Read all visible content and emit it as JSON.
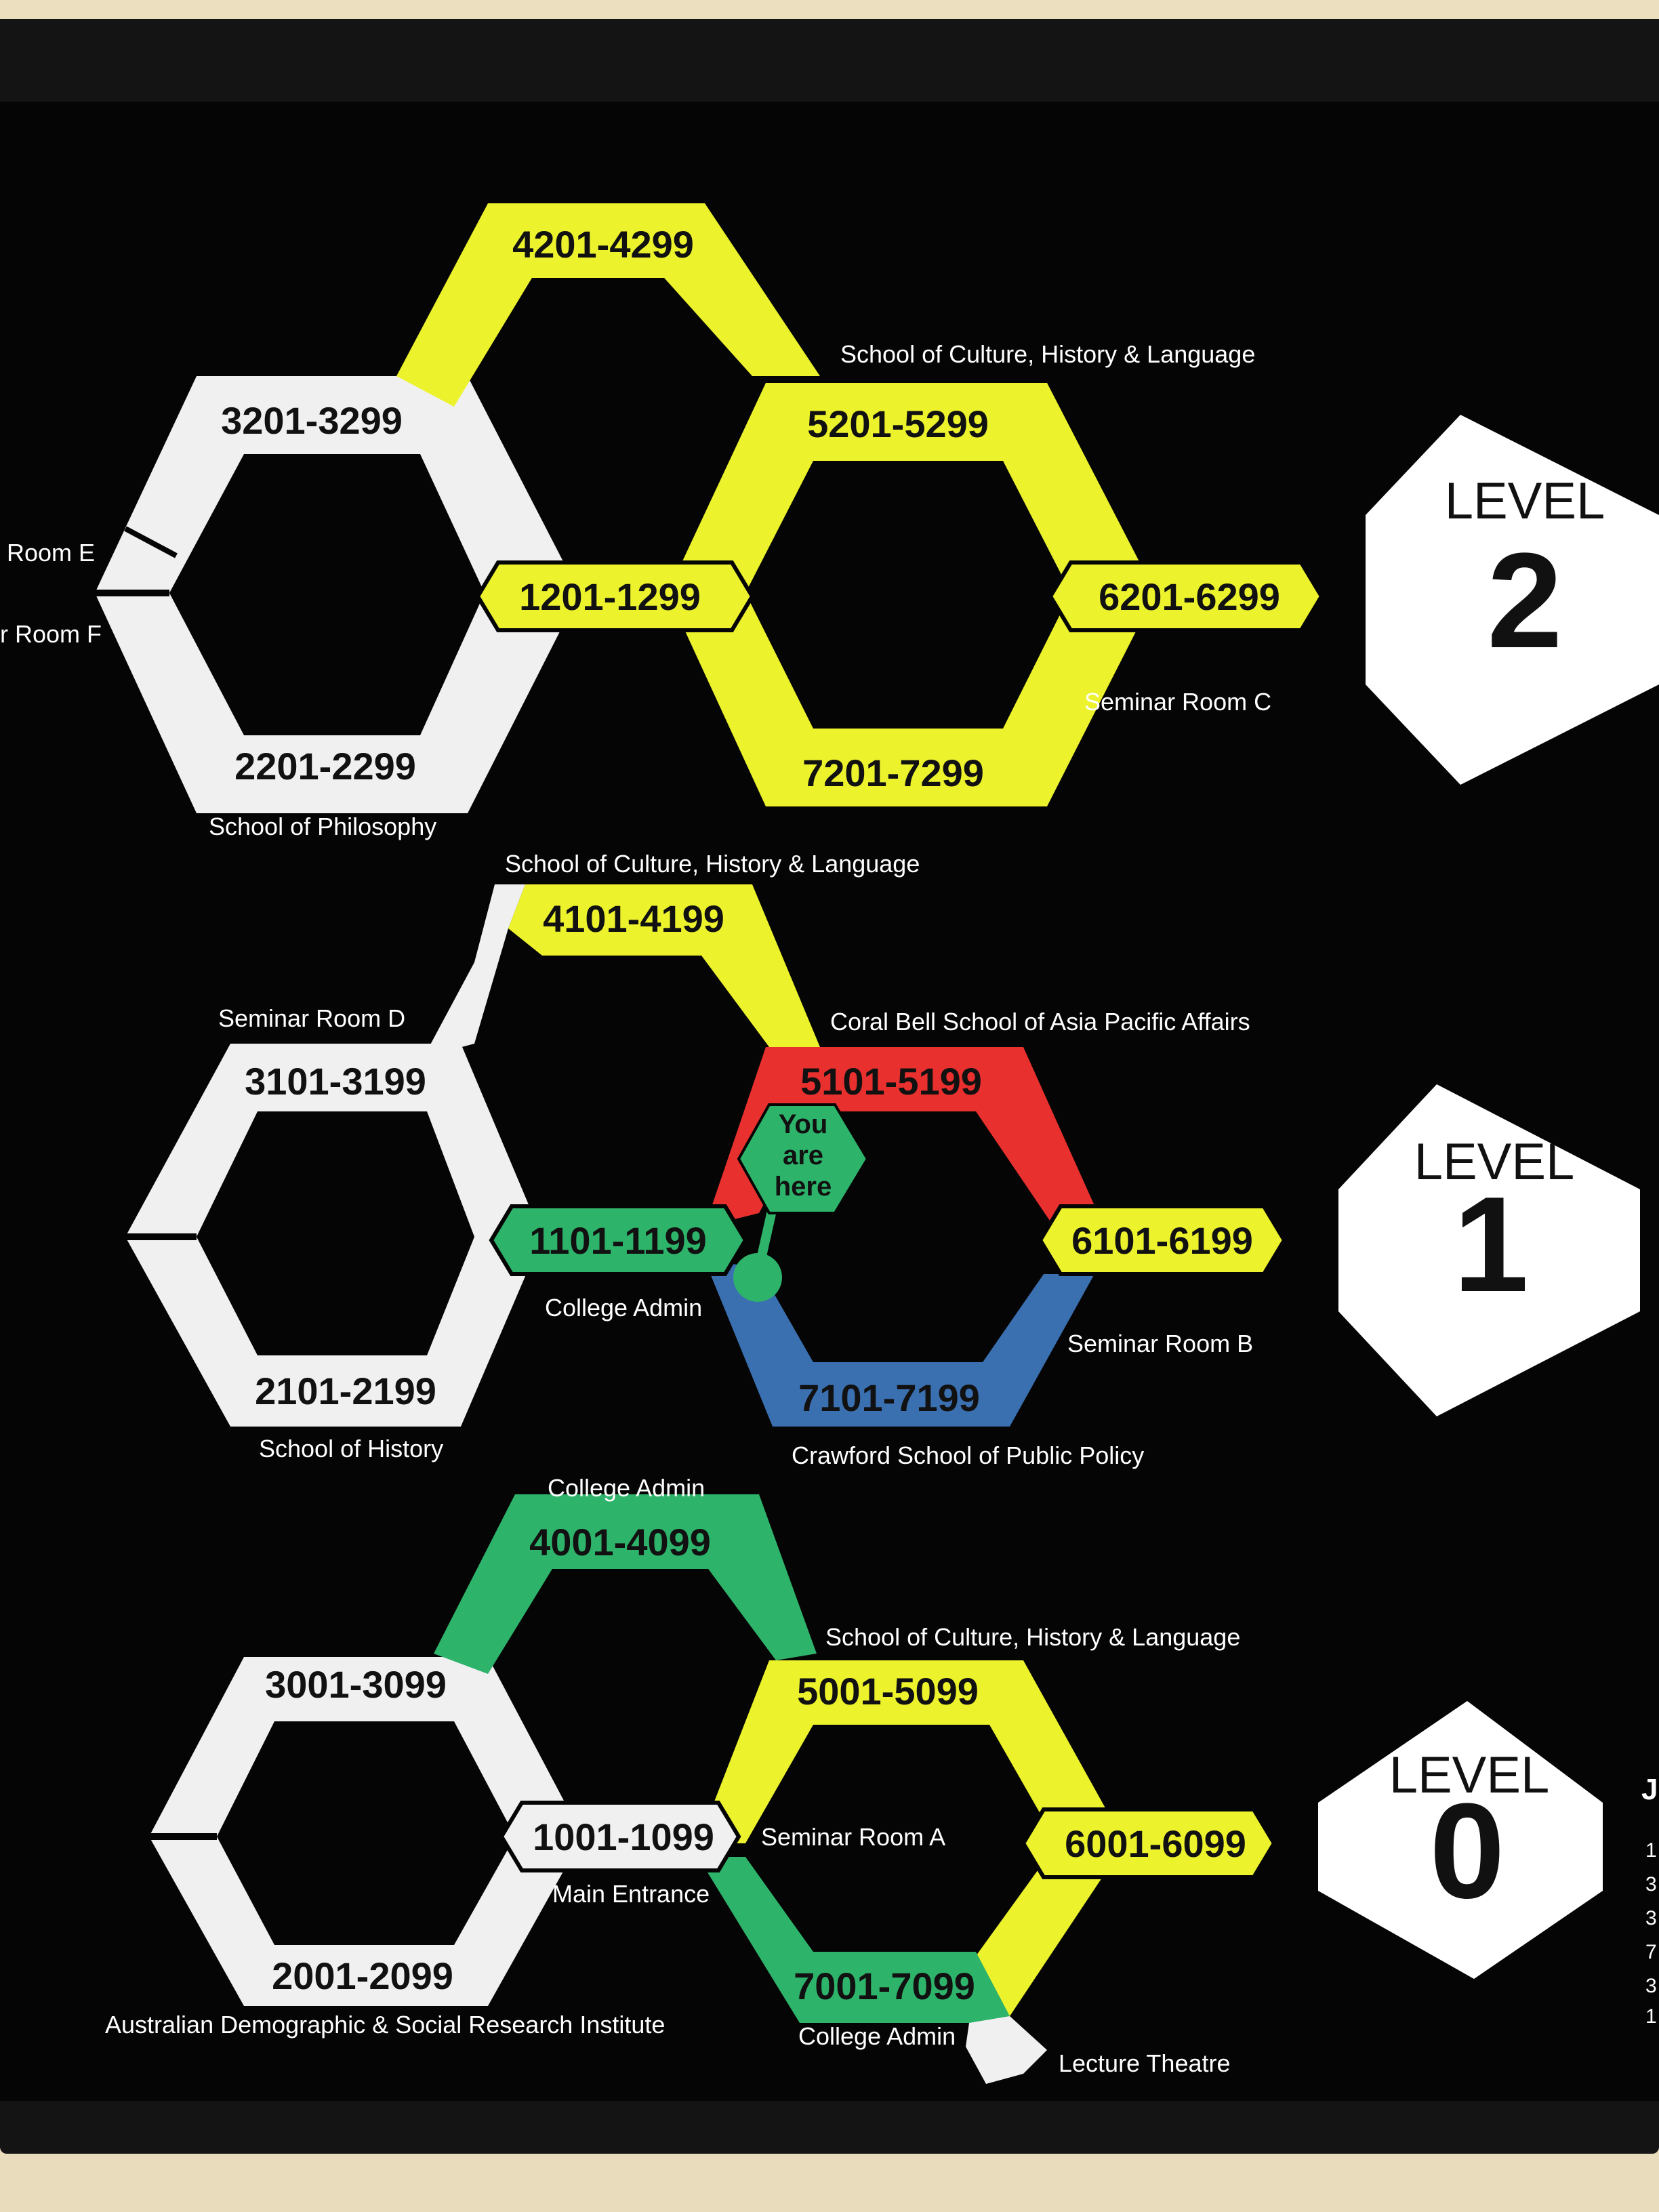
{
  "colors": {
    "white": "#f0f0f0",
    "yellow": "#ecf22c",
    "green": "#2eb36b",
    "red": "#e8302e",
    "blue": "#3a6fb0",
    "black": "#050505"
  },
  "level2": {
    "level_word": "LEVEL",
    "level_number": "2",
    "r_3201": "3201-3299",
    "r_4201": "4201-4299",
    "r_5201": "5201-5299",
    "r_1201": "1201-1299",
    "r_6201": "6201-6299",
    "r_2201": "2201-2299",
    "r_7201": "7201-7299",
    "lbl_culture": "School of Culture, History & Language",
    "lbl_room_e": "Room E",
    "lbl_room_f": "r Room F",
    "lbl_seminar_c": "Seminar Room C",
    "lbl_philosophy": "School of Philosophy"
  },
  "level1": {
    "level_word": "LEVEL",
    "level_number": "1",
    "r_4101": "4101-4199",
    "r_3101": "3101-3199",
    "r_5101": "5101-5199",
    "r_1101": "1101-1199",
    "r_6101": "6101-6199",
    "r_2101": "2101-2199",
    "r_7101": "7101-7199",
    "lbl_culture": "School of Culture, History & Language",
    "lbl_seminar_d": "Seminar Room D",
    "lbl_coral_bell": "Coral Bell School of Asia Pacific Affairs",
    "lbl_college_admin": "College Admin",
    "lbl_seminar_b": "Seminar Room B",
    "lbl_history": "School of History",
    "lbl_crawford": "Crawford School of Public Policy",
    "you_are_here": [
      "You",
      "are",
      "here"
    ]
  },
  "level0": {
    "level_word": "LEVEL",
    "level_number": "0",
    "r_4001": "4001-4099",
    "r_3001": "3001-3099",
    "r_5001": "5001-5099",
    "r_1001": "1001-1099",
    "r_6001": "6001-6099",
    "r_2001": "2001-2099",
    "r_7001": "7001-7099",
    "lbl_college_admin_top": "College Admin",
    "lbl_culture": "School of Culture, History & Language",
    "lbl_seminar_a": "Seminar Room A",
    "lbl_main_entrance": "Main Entrance",
    "lbl_adsri": "Australian Demographic & Social Research Institute",
    "lbl_college_admin_bottom": "College Admin",
    "lbl_lecture_theatre": "Lecture Theatre"
  },
  "edge_glyphs": [
    "J",
    "1",
    "3",
    "3",
    "7",
    "3",
    "1"
  ]
}
